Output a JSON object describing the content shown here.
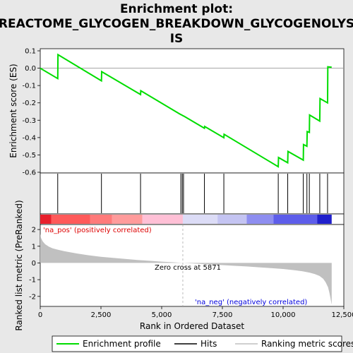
{
  "chart_data": {
    "type": "line",
    "title_lines": [
      "Enrichment plot:",
      "REACTOME_GLYCOGEN_BREAKDOWN_GLYCOGENOLYS",
      "IS"
    ],
    "panels": {
      "enrichment": {
        "ylabel": "Enrichment score (ES)",
        "ylim": [
          -0.6,
          0.1
        ],
        "yticks": [
          0.1,
          0.0,
          -0.1,
          -0.2,
          -0.3,
          -0.4,
          -0.5,
          -0.6
        ],
        "ytick_labels": [
          "0.1",
          "0.0",
          "-0.1",
          "-0.2",
          "-0.3",
          "-0.4",
          "-0.5",
          "-0.6"
        ],
        "series": [
          {
            "name": "Enrichment profile",
            "color": "#00dd00",
            "x": [
              0,
              720,
              730,
              2520,
              2530,
              4130,
              4140,
              5790,
              5800,
              5900,
              5910,
              6760,
              6770,
              7560,
              7570,
              9800,
              9810,
              10190,
              10200,
              10830,
              10840,
              10980,
              10990,
              11080,
              11090,
              11510,
              11520,
              11830,
              11840,
              12000
            ],
            "y": [
              0.0,
              -0.06,
              0.078,
              -0.073,
              -0.02,
              -0.152,
              -0.13,
              -0.268,
              -0.268,
              -0.276,
              -0.276,
              -0.346,
              -0.336,
              -0.401,
              -0.381,
              -0.568,
              -0.515,
              -0.545,
              -0.48,
              -0.53,
              -0.44,
              -0.45,
              -0.365,
              -0.37,
              -0.27,
              -0.305,
              -0.175,
              -0.2,
              0.008,
              0.005
            ]
          }
        ]
      },
      "hits": {
        "legend_name": "Hits",
        "positions": [
          720,
          2520,
          4130,
          5790,
          5850,
          5900,
          6760,
          7560,
          9800,
          10190,
          10830,
          10980,
          11080,
          11510,
          11830
        ]
      },
      "colorbar": {
        "segments": [
          {
            "from": 0,
            "to": 450,
            "color": "#e8202c"
          },
          {
            "from": 450,
            "to": 2050,
            "color": "#ff5a5a"
          },
          {
            "from": 2050,
            "to": 2950,
            "color": "#ff7a7a"
          },
          {
            "from": 2950,
            "to": 4200,
            "color": "#ff9b9b"
          },
          {
            "from": 4200,
            "to": 5871,
            "color": "#ffc0d6"
          },
          {
            "from": 5871,
            "to": 7300,
            "color": "#dcdcf6"
          },
          {
            "from": 7300,
            "to": 8500,
            "color": "#c4c4f2"
          },
          {
            "from": 8500,
            "to": 9600,
            "color": "#8e8ef0"
          },
          {
            "from": 9600,
            "to": 11400,
            "color": "#5d5dea"
          },
          {
            "from": 11400,
            "to": 12000,
            "color": "#2020cc"
          }
        ]
      },
      "ranking": {
        "ylabel": "Ranked list metric (PreRanked)",
        "xlabel": "Rank in Ordered Dataset",
        "xlim": [
          0,
          12500
        ],
        "ylim": [
          -2.6,
          2.3
        ],
        "xticks": [
          0,
          2500,
          5000,
          7500,
          10000,
          12500
        ],
        "xtick_labels": [
          "0",
          "2,500",
          "5,000",
          "7,500",
          "10,000",
          "12,500"
        ],
        "yticks": [
          2,
          1,
          0,
          -1,
          -2
        ],
        "ytick_labels": [
          "2",
          "1",
          "0",
          "-1",
          "-2"
        ],
        "legend_name": "Ranking metric scores",
        "fill_color": "#c0c0c0",
        "curve": {
          "x": [
            0,
            30,
            100,
            200,
            350,
            500,
            700,
            1000,
            1500,
            2000,
            2500,
            3000,
            3500,
            4000,
            4500,
            5000,
            5500,
            5871,
            6500,
            7000,
            7500,
            8000,
            8500,
            9000,
            9500,
            10000,
            10500,
            10800,
            11100,
            11300,
            11500,
            11650,
            11750,
            11850,
            11900,
            11950,
            12000
          ],
          "y": [
            1.75,
            1.5,
            1.3,
            1.12,
            0.98,
            0.88,
            0.8,
            0.7,
            0.57,
            0.46,
            0.37,
            0.3,
            0.24,
            0.18,
            0.13,
            0.08,
            0.04,
            0.0,
            -0.05,
            -0.09,
            -0.13,
            -0.17,
            -0.21,
            -0.26,
            -0.31,
            -0.36,
            -0.44,
            -0.5,
            -0.58,
            -0.66,
            -0.78,
            -0.95,
            -1.15,
            -1.45,
            -1.75,
            -2.1,
            -2.5
          ]
        },
        "zero_cross_label": "Zero cross at 5871",
        "zero_cross_x": 5871,
        "pos_label": "'na_pos' (positively correlated)",
        "neg_label": "'na_neg' (negatively correlated)",
        "pos_color": "#dd0000",
        "neg_color": "#0000dd"
      }
    },
    "legend": {
      "placement": "bottom",
      "entries": [
        "Enrichment profile",
        "Hits",
        "Ranking metric scores"
      ]
    }
  }
}
